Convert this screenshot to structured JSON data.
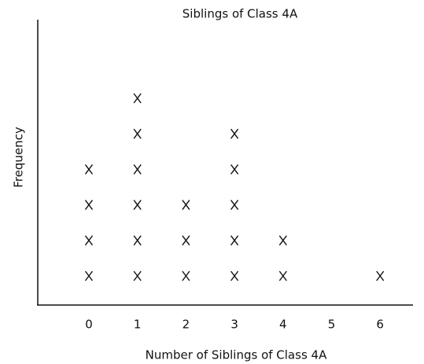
{
  "chart_data": {
    "type": "dotplot",
    "title": "Siblings of Class 4A",
    "x_label": "Number of Siblings of Class 4A",
    "y_label": "Frequency",
    "categories": [
      "0",
      "1",
      "2",
      "3",
      "4",
      "5",
      "6"
    ],
    "values": [
      4,
      6,
      3,
      5,
      2,
      0,
      1
    ],
    "color": "#111111"
  }
}
